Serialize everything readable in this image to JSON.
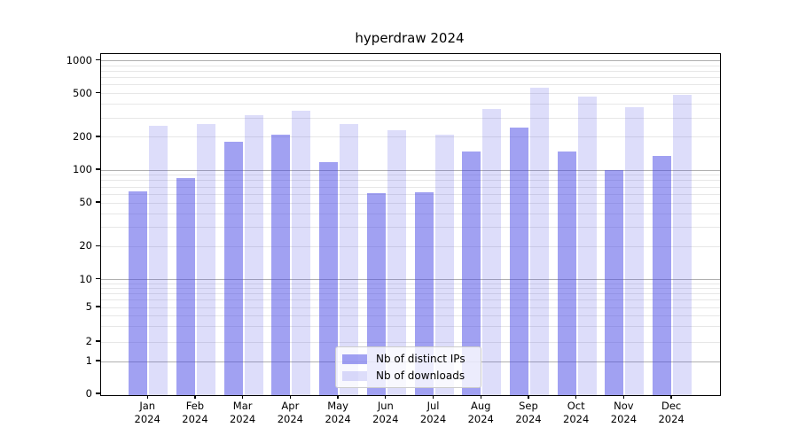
{
  "chart_data": {
    "type": "bar",
    "title": "hyperdraw 2024",
    "categories": [
      "Jan 2024",
      "Feb 2024",
      "Mar 2024",
      "Apr 2024",
      "May 2024",
      "Jun 2024",
      "Jul 2024",
      "Aug 2024",
      "Sep 2024",
      "Oct 2024",
      "Nov 2024",
      "Dec 2024"
    ],
    "category_month_labels": [
      "Jan",
      "Feb",
      "Mar",
      "Apr",
      "May",
      "Jun",
      "Jul",
      "Aug",
      "Sep",
      "Oct",
      "Nov",
      "Dec"
    ],
    "category_year_label": "2024",
    "series": [
      {
        "name": "Nb of distinct IPs",
        "color": "rgba(68,68,230,0.5)",
        "values": [
          64,
          84,
          182,
          212,
          118,
          62,
          63,
          149,
          243,
          147,
          100,
          135
        ]
      },
      {
        "name": "Nb of downloads",
        "color": "rgba(68,68,230,0.18)",
        "values": [
          252,
          264,
          318,
          348,
          264,
          233,
          212,
          360,
          562,
          467,
          375,
          485
        ]
      }
    ],
    "yscale": "symlog",
    "ylabel": "",
    "xlabel": "",
    "yticks": [
      1000,
      500,
      200,
      100,
      50,
      20,
      10,
      5,
      2,
      1,
      0
    ],
    "ylim": [
      0,
      1150
    ],
    "grid": true,
    "legend_position": "lower center"
  },
  "colors": {
    "grid_major": "#b0b0b0",
    "grid_minor": "#e7e7e7",
    "spine": "#000000",
    "text": "#000000"
  }
}
